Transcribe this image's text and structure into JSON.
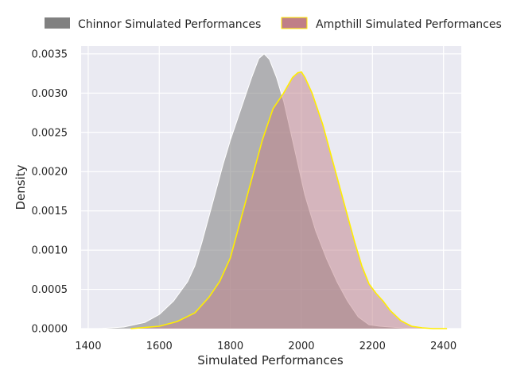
{
  "chart_data": {
    "type": "area",
    "xlabel": "Simulated Performances",
    "ylabel": "Density",
    "xlim": [
      1380,
      2450
    ],
    "ylim": [
      0,
      0.0036
    ],
    "x_ticks": [
      1400,
      1600,
      1800,
      2000,
      2200,
      2400
    ],
    "x_tick_labels": [
      "1400",
      "1600",
      "1800",
      "2000",
      "2200",
      "2400"
    ],
    "y_ticks": [
      0,
      0.0005,
      0.001,
      0.0015,
      0.002,
      0.0025,
      0.003,
      0.0035
    ],
    "y_tick_labels": [
      "0.0000",
      "0.0005",
      "0.0010",
      "0.0015",
      "0.0020",
      "0.0025",
      "0.0030",
      "0.0035"
    ],
    "grid": true,
    "background": "#eaeaf2",
    "legend_position": "top, above plot",
    "series": [
      {
        "name": "Chinnor Simulated Performances",
        "fill": "#808080",
        "edge": "#ffffff",
        "fill_opacity": 0.55,
        "x": [
          1430,
          1500,
          1560,
          1600,
          1640,
          1680,
          1700,
          1720,
          1750,
          1780,
          1800,
          1830,
          1860,
          1880,
          1895,
          1910,
          1930,
          1950,
          1970,
          1990,
          2010,
          2040,
          2070,
          2100,
          2130,
          2160,
          2190,
          2220,
          2250,
          2280,
          2310
        ],
        "y": [
          0.0,
          2e-05,
          8e-05,
          0.00018,
          0.00035,
          0.0006,
          0.0008,
          0.0011,
          0.0016,
          0.0021,
          0.0024,
          0.0028,
          0.0032,
          0.00344,
          0.0035,
          0.00343,
          0.0032,
          0.0029,
          0.0025,
          0.0021,
          0.0017,
          0.00125,
          0.0009,
          0.0006,
          0.00035,
          0.00015,
          5e-05,
          3e-05,
          2e-05,
          1e-05,
          0.0
        ]
      },
      {
        "name": "Ampthill Simulated Performances",
        "fill": "#c07f87",
        "edge": "#ffee00",
        "fill_opacity": 0.5,
        "x": [
          1520,
          1600,
          1650,
          1700,
          1740,
          1770,
          1800,
          1830,
          1860,
          1890,
          1920,
          1950,
          1975,
          1990,
          2000,
          2010,
          2030,
          2060,
          2090,
          2120,
          2150,
          2170,
          2190,
          2210,
          2230,
          2250,
          2280,
          2310,
          2340,
          2370,
          2410
        ],
        "y": [
          0.0,
          3e-05,
          9e-05,
          0.0002,
          0.0004,
          0.0006,
          0.0009,
          0.0014,
          0.0019,
          0.0024,
          0.0028,
          0.003,
          0.0032,
          0.00326,
          0.00327,
          0.0032,
          0.003,
          0.0026,
          0.0021,
          0.0016,
          0.0011,
          0.0008,
          0.00057,
          0.00045,
          0.00035,
          0.00023,
          0.0001,
          3e-05,
          1e-05,
          0.0,
          0.0
        ]
      }
    ]
  }
}
